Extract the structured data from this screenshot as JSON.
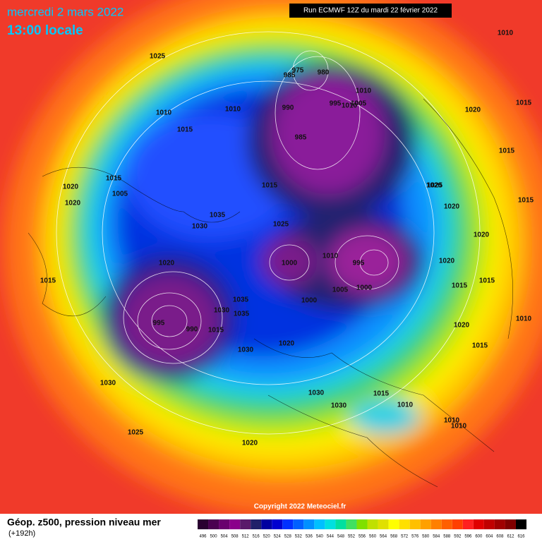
{
  "header": {
    "date": "mercredi 2 mars 2022",
    "time": "13:00 locale",
    "run": "Run ECMWF 12Z du mardi 22 février 2022"
  },
  "footer": {
    "copyright": "Copyright 2022 Meteociel.fr",
    "title": "Géop. z500, pression niveau mer",
    "subtitle": "(+192h)"
  },
  "labels": [
    "1010",
    "1025",
    "975",
    "980",
    "985",
    "1010",
    "1005",
    "990",
    "995",
    "1010",
    "1020",
    "1015",
    "1015",
    "985",
    "1015",
    "1010",
    "1010",
    "1015",
    "1020",
    "1005",
    "1020",
    "1015",
    "1025",
    "1020",
    "1035",
    "1030",
    "1025",
    "1020",
    "1000",
    "1010",
    "995",
    "1005",
    "1000",
    "1000",
    "1020",
    "1015",
    "995",
    "990",
    "1015",
    "1035",
    "1030",
    "1035",
    "1030",
    "1020",
    "1020",
    "1015",
    "1030",
    "1030",
    "1015",
    "1010",
    "1030",
    "1025",
    "1020",
    "1015",
    "1010",
    "1010",
    "1015",
    "1020",
    "1020",
    "1015",
    "1010"
  ],
  "scale": {
    "labels": [
      496,
      500,
      504,
      508,
      512,
      516,
      520,
      524,
      528,
      532,
      536,
      540,
      544,
      548,
      552,
      556,
      560,
      564,
      568,
      572,
      576,
      580,
      584,
      588,
      592,
      596,
      600,
      604,
      608,
      612,
      616
    ],
    "colors": [
      "#2a0030",
      "#4b0050",
      "#6a006e",
      "#8b008b",
      "#5a1a6a",
      "#20206a",
      "#0000a0",
      "#0000d0",
      "#0030ff",
      "#0060ff",
      "#0090ff",
      "#00c0ff",
      "#00e0e0",
      "#00e0a0",
      "#40e060",
      "#80e000",
      "#c0e000",
      "#e0e000",
      "#ffff00",
      "#ffe000",
      "#ffc000",
      "#ffa000",
      "#ff8000",
      "#ff6000",
      "#ff4000",
      "#ff2020",
      "#e00000",
      "#c00000",
      "#a00000",
      "#800000",
      "#000000"
    ]
  }
}
